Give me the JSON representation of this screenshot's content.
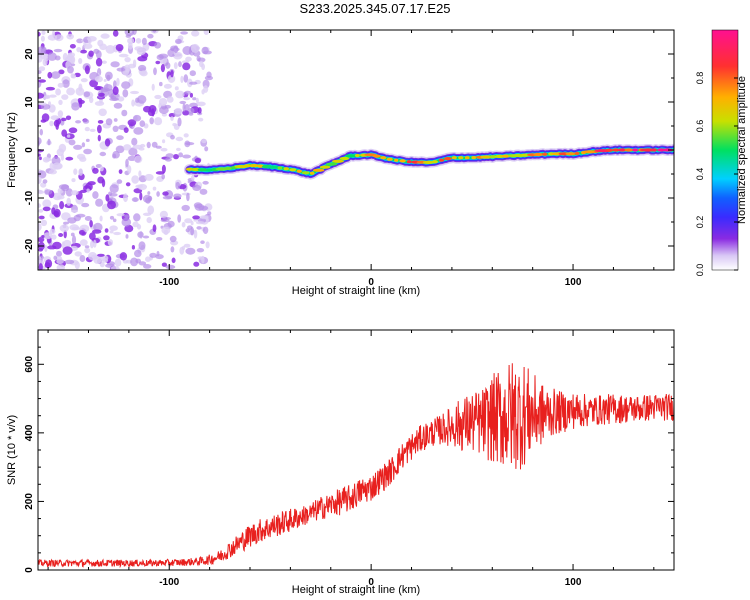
{
  "figure_title": "S233.2025.345.07.17.E25",
  "chart_data": [
    {
      "type": "heatmap",
      "title": "S233.2025.345.07.17.E25",
      "xlabel": "Height of straight line (km)",
      "ylabel": "Frequency (Hz)",
      "xlim": [
        -165,
        150
      ],
      "ylim": [
        -25,
        25
      ],
      "x_ticks": [
        -100,
        0,
        100
      ],
      "x_tick_labels": [
        "-100",
        "0",
        "100"
      ],
      "y_ticks": [
        -20,
        -10,
        0,
        10,
        20
      ],
      "y_tick_labels": [
        "-20",
        "-10",
        "0",
        "10",
        "20"
      ],
      "colorbar": {
        "label": "Normalized spectral amplitude",
        "range": [
          0,
          1
        ],
        "ticks": [
          0.0,
          0.2,
          0.4,
          0.6,
          0.8
        ],
        "tick_labels": [
          "0.0",
          "0.2",
          "0.4",
          "0.6",
          "0.8"
        ],
        "colormap": [
          "#ffffff",
          "#d9c8f5",
          "#8a2be2",
          "#2020ff",
          "#00d0ff",
          "#00e060",
          "#c8e000",
          "#ffb000",
          "#ff3030",
          "#ff1090"
        ]
      },
      "noise_region_x": [
        -165,
        -80
      ],
      "ridge": {
        "x": [
          -90,
          -80,
          -70,
          -60,
          -50,
          -40,
          -30,
          -20,
          -10,
          0,
          10,
          20,
          30,
          40,
          50,
          60,
          70,
          80,
          90,
          100,
          110,
          120,
          130,
          140,
          150
        ],
        "freq": [
          -4,
          -4.2,
          -3.8,
          -3.2,
          -3.5,
          -4,
          -5,
          -3,
          -1.2,
          -1,
          -2,
          -2.5,
          -2.6,
          -1.6,
          -1.6,
          -1.4,
          -1.2,
          -1,
          -0.8,
          -0.8,
          -0.3,
          0,
          0,
          0,
          0
        ],
        "amplitude": [
          0.55,
          0.6,
          0.6,
          0.62,
          0.6,
          0.62,
          0.65,
          0.62,
          0.6,
          0.7,
          0.72,
          0.78,
          0.7,
          0.75,
          0.72,
          0.7,
          0.7,
          0.72,
          0.7,
          0.75,
          0.85,
          0.9,
          0.9,
          0.92,
          0.92
        ]
      }
    },
    {
      "type": "line",
      "xlabel": "Height of straight line (km)",
      "ylabel": "SNR (10 * v/v)",
      "xlim": [
        -165,
        150
      ],
      "ylim": [
        0,
        700
      ],
      "x_ticks": [
        -100,
        0,
        100
      ],
      "x_tick_labels": [
        "-100",
        "0",
        "100"
      ],
      "y_ticks": [
        0,
        200,
        400,
        600
      ],
      "y_tick_labels": [
        "0",
        "200",
        "400",
        "600"
      ],
      "color": "#e8201e",
      "series": [
        {
          "name": "SNR",
          "x": [
            -165,
            -150,
            -130,
            -110,
            -95,
            -85,
            -80,
            -75,
            -70,
            -65,
            -60,
            -55,
            -50,
            -45,
            -40,
            -35,
            -30,
            -25,
            -20,
            -15,
            -10,
            -5,
            0,
            5,
            10,
            15,
            20,
            25,
            30,
            35,
            40,
            45,
            50,
            55,
            60,
            65,
            70,
            75,
            80,
            85,
            90,
            95,
            100,
            110,
            120,
            130,
            140,
            150
          ],
          "mean": [
            20,
            20,
            20,
            20,
            22,
            25,
            30,
            40,
            60,
            80,
            100,
            115,
            125,
            135,
            145,
            155,
            165,
            180,
            190,
            200,
            210,
            230,
            240,
            265,
            290,
            330,
            360,
            385,
            400,
            410,
            420,
            425,
            430,
            430,
            440,
            445,
            450,
            455,
            455,
            455,
            460,
            460,
            465,
            465,
            470,
            470,
            475,
            475
          ],
          "noise_amplitude": [
            10,
            10,
            10,
            10,
            10,
            12,
            15,
            18,
            25,
            30,
            35,
            35,
            35,
            35,
            35,
            30,
            30,
            35,
            35,
            40,
            40,
            40,
            40,
            40,
            40,
            40,
            40,
            40,
            40,
            45,
            60,
            80,
            90,
            100,
            130,
            150,
            170,
            160,
            120,
            90,
            70,
            60,
            55,
            45,
            45,
            40,
            40,
            40
          ]
        }
      ]
    }
  ]
}
